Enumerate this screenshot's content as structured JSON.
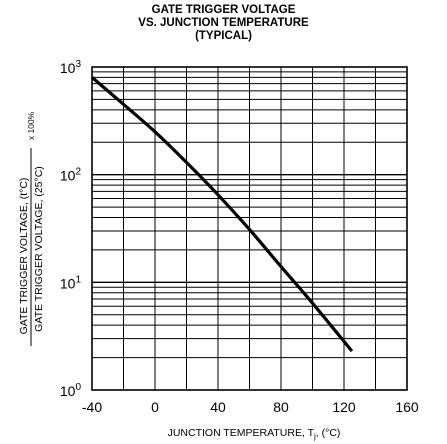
{
  "chart_data": {
    "type": "line",
    "title_lines": [
      "GATE TRIGGER VOLTAGE",
      "VS. JUNCTION TEMPERATURE",
      "(TYPICAL)"
    ],
    "xlabel": {
      "text": "JUNCTION TEMPERATURE, T",
      "sub": "j",
      "unit": ", (°C)"
    },
    "ylabel": {
      "numerator": "GATE TRIGGER VOLTAGE, (t°C)",
      "denominator": "GATE TRIGGER VOLTAGE, (25°C)",
      "multiplier": "x 100%"
    },
    "x_ticks": [
      "-40",
      "0",
      "40",
      "80",
      "120",
      "160"
    ],
    "x_tick_values": [
      -40,
      0,
      40,
      80,
      120,
      160
    ],
    "xlim": [
      -40,
      160
    ],
    "y_ticks": [
      {
        "base": "10",
        "exp": "0",
        "value": 1
      },
      {
        "base": "10",
        "exp": "1",
        "value": 10
      },
      {
        "base": "10",
        "exp": "2",
        "value": 100
      },
      {
        "base": "10",
        "exp": "3",
        "value": 1000
      }
    ],
    "ylim": [
      1,
      1000
    ],
    "yscale": "log",
    "grid": true,
    "series": [
      {
        "x": [
          -40,
          -20,
          0,
          20,
          40,
          60,
          80,
          100,
          125
        ],
        "y": [
          800,
          450,
          250,
          130,
          65,
          31,
          14,
          6.4,
          2.3
        ]
      }
    ]
  }
}
